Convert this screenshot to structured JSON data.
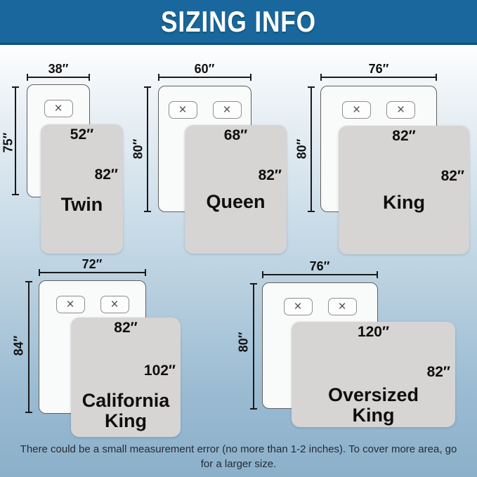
{
  "header": {
    "title": "SIZING INFO"
  },
  "beds": [
    {
      "name": "Twin",
      "mattress_width": "38″",
      "mattress_length": "75″",
      "blanket_width": "52″",
      "blanket_length": "82″"
    },
    {
      "name": "Queen",
      "mattress_width": "60″",
      "mattress_length": "80″",
      "blanket_width": "68″",
      "blanket_length": "82″"
    },
    {
      "name": "King",
      "mattress_width": "76″",
      "mattress_length": "80″",
      "blanket_width": "82″",
      "blanket_length": "82″"
    },
    {
      "name": "California King",
      "mattress_width": "72″",
      "mattress_length": "84″",
      "blanket_width": "82″",
      "blanket_length": "102″"
    },
    {
      "name": "Oversized King",
      "mattress_width": "76″",
      "mattress_length": "80″",
      "blanket_width": "120″",
      "blanket_length": "82″"
    }
  ],
  "icons": {
    "pillow_x": "×"
  },
  "footer": {
    "note": "There could be a small measurement error (no more than 1-2 inches). To cover more area, go for a larger size."
  },
  "colors": {
    "header_bg": "#19679c",
    "header_border": "#155079",
    "blanket": "#d6d5d4",
    "bg_bottom": "#8cb0ca"
  }
}
